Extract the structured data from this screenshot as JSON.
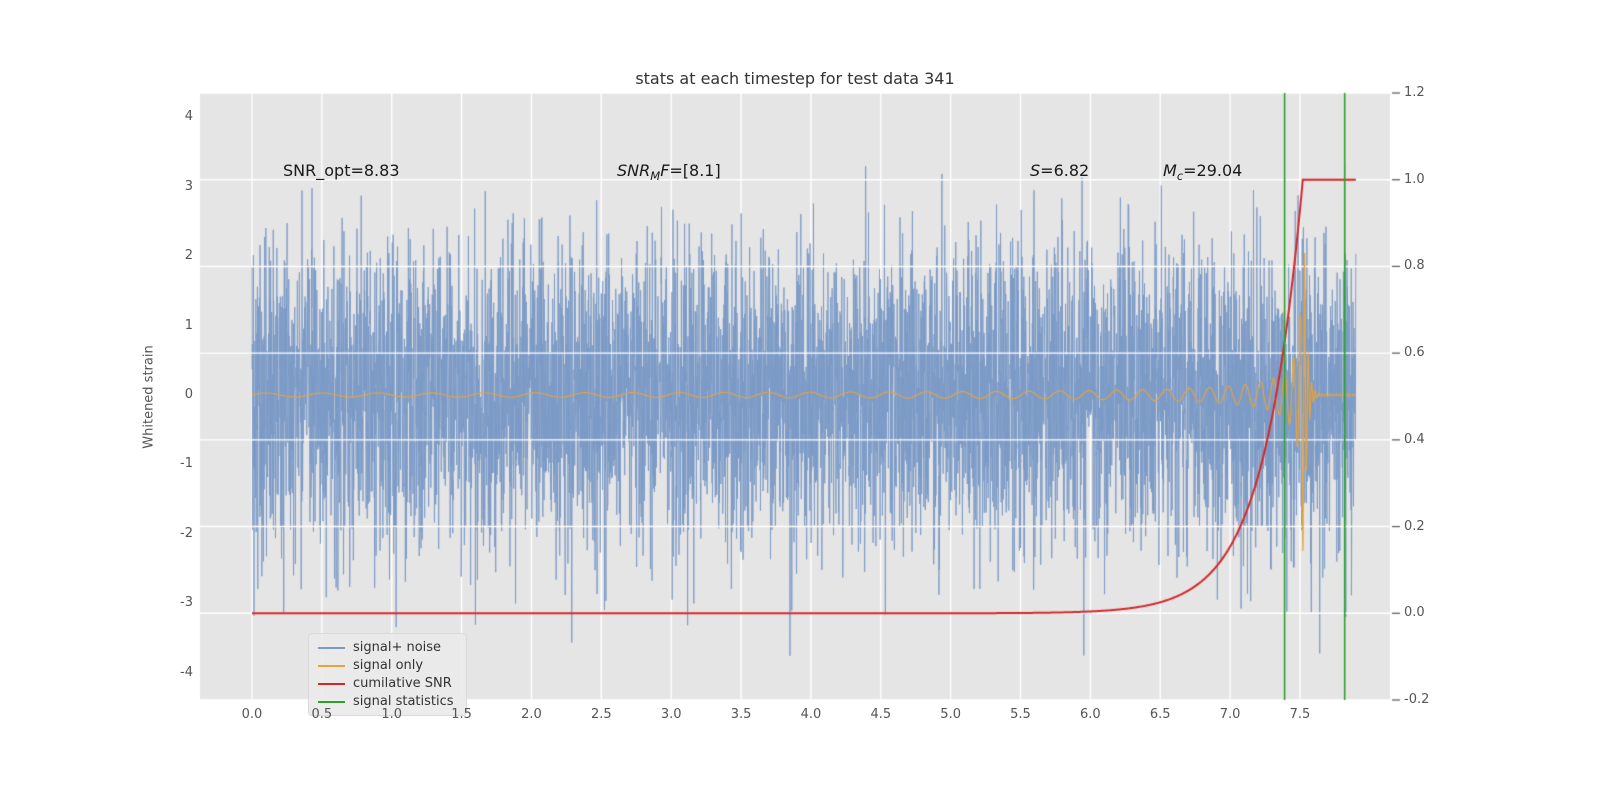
{
  "title": "stats at each timestep for test data 341",
  "axes": {
    "ylabel_left": "Whitened strain"
  },
  "annotations": [
    {
      "i1": "",
      "sub": "",
      "i2": "",
      "rest": "SNR_opt=8.83"
    },
    {
      "i1": "SNR",
      "sub": "M",
      "i2": "F",
      "rest": "=[8.1]"
    },
    {
      "i1": "S",
      "sub": "",
      "i2": "",
      "rest": "=6.82"
    },
    {
      "i1": "M",
      "sub": "c",
      "i2": "",
      "rest": "=29.04"
    }
  ],
  "legend": {
    "position": "lower left",
    "entries": [
      {
        "label": "signal+ noise",
        "color": "#7b9ac6"
      },
      {
        "label": "signal only",
        "color": "#e8a33b"
      },
      {
        "label": "cumilative SNR",
        "color": "#d62728"
      },
      {
        "label": "signal statistics",
        "color": "#2ca02c"
      }
    ]
  },
  "chart_data": {
    "type": "line",
    "title": "stats at each timestep for test data 341",
    "ylabel_left": "Whitened strain",
    "xlim": [
      -0.37,
      8.15
    ],
    "ylim_left": [
      -4.35,
      4.35
    ],
    "ylim_right": [
      -0.2,
      1.2
    ],
    "grid": true,
    "x_ticks": [
      0.0,
      0.5,
      1.0,
      1.5,
      2.0,
      2.5,
      3.0,
      3.5,
      4.0,
      4.5,
      5.0,
      5.5,
      6.0,
      6.5,
      7.0,
      7.5
    ],
    "x_tick_labels": [
      "0.0",
      "0.5",
      "1.0",
      "1.5",
      "2.0",
      "2.5",
      "3.0",
      "3.5",
      "4.0",
      "4.5",
      "5.0",
      "5.5",
      "6.0",
      "6.5",
      "7.0",
      "7.5"
    ],
    "y_ticks_left": [
      -4,
      -3,
      -2,
      -1,
      0,
      1,
      2,
      3,
      4
    ],
    "y_tick_labels_left": [
      "-4",
      "-3",
      "-2",
      "-1",
      "0",
      "1",
      "2",
      "3",
      "4"
    ],
    "y_ticks_right": [
      -0.2,
      0.0,
      0.2,
      0.4,
      0.6,
      0.8,
      1.0,
      1.2
    ],
    "y_tick_labels_right": [
      "-0.2",
      "0.0",
      "0.2",
      "0.4",
      "0.6",
      "0.8",
      "1.0",
      "1.2"
    ],
    "annotations_text": [
      "SNR_opt=8.83",
      "SNR_MF=[8.1]",
      "S=6.82",
      "M_c=29.04"
    ],
    "series": [
      {
        "name": "signal+ noise",
        "kind": "gaussian_noise",
        "color": "#7b9ac6",
        "x_start": 0.0,
        "x_end": 7.9,
        "mean": 0.0,
        "std": 1.1,
        "n_points": 5500,
        "seed": 341
      },
      {
        "name": "signal only",
        "kind": "chirp",
        "color": "#e8a33b",
        "x_start": 0.0,
        "x_end": 7.9,
        "merger_time": 7.53,
        "peak_amplitude": 2.4,
        "base_amplitude": 0.015,
        "amp_coef": 0.07,
        "amp_exponent": -0.8,
        "freq_coef": 6.0,
        "freq_exponent": -0.45,
        "max_frequency": 40,
        "ringdown_decay": 50
      },
      {
        "name": "cumilative SNR",
        "kind": "cumulative_snr",
        "axis": "right",
        "color": "#d62728",
        "x_start": 0.0,
        "x_end": 7.9,
        "flat_value": 0.0,
        "plateau_value": 1.0,
        "growth_rate": 3.6,
        "plateau_time": 7.52
      },
      {
        "name": "signal statistics",
        "kind": "vlines",
        "color": "#2ca02c",
        "x_values": [
          7.39,
          7.82
        ]
      }
    ]
  }
}
